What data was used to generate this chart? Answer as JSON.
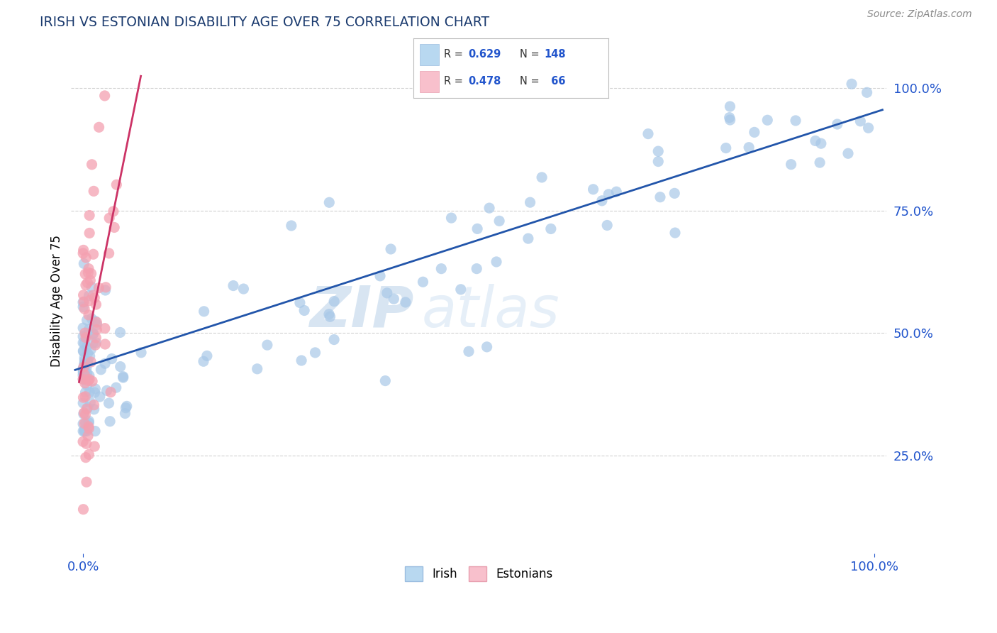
{
  "title": "IRISH VS ESTONIAN DISABILITY AGE OVER 75 CORRELATION CHART",
  "source": "Source: ZipAtlas.com",
  "ylabel": "Disability Age Over 75",
  "irish_color": "#a8c8e8",
  "irish_edge_color": "#a8c8e8",
  "estonian_color": "#f4a0b0",
  "estonian_edge_color": "#f4a0b0",
  "irish_line_color": "#2255aa",
  "estonian_line_color": "#cc3366",
  "estonian_line_style": "solid",
  "irish_R": 0.629,
  "irish_N": 148,
  "estonian_R": 0.478,
  "estonian_N": 66,
  "watermark_zip": "ZIP",
  "watermark_atlas": "atlas",
  "background_color": "#ffffff",
  "legend_color_irish": "#b8d8f0",
  "legend_color_estonian": "#f8c0cc",
  "grid_color": "#cccccc",
  "title_color": "#1a3a6e",
  "axis_label_color": "#2255cc",
  "source_color": "#888888"
}
